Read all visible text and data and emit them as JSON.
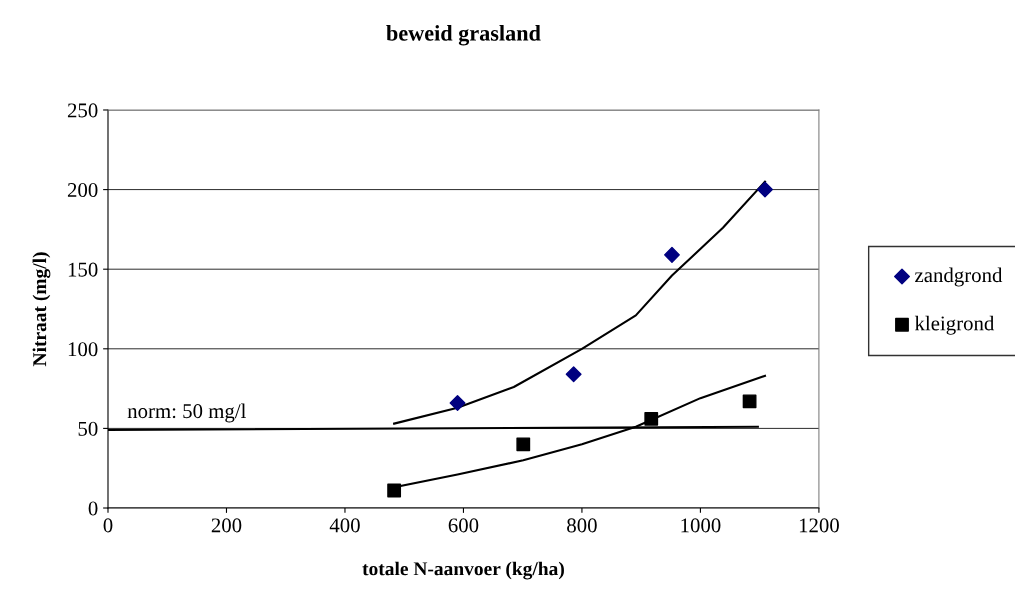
{
  "chart_data": {
    "type": "scatter",
    "title": "beweid grasland",
    "xlabel": "totale N-aanvoer (kg/ha)",
    "ylabel": "Nitraat (mg/l)",
    "xlim": [
      0,
      1200
    ],
    "xticks": [
      0,
      200,
      400,
      600,
      800,
      1000,
      1200
    ],
    "ylim": [
      0,
      250
    ],
    "yticks": [
      0,
      50,
      100,
      150,
      200,
      250
    ],
    "grid": "y",
    "legend": "right",
    "series": [
      {
        "name": "zandgrond",
        "marker": "diamond",
        "color": "#000080",
        "x": [
          590,
          786,
          952,
          1109
        ],
        "values": [
          66,
          84,
          159,
          200
        ]
      },
      {
        "name": "kleigrond",
        "marker": "square",
        "color": "#000000",
        "x": [
          483,
          701,
          917,
          1083
        ],
        "values": [
          11,
          40,
          56,
          67
        ]
      },
      {
        "type": "line",
        "color": "#000000",
        "x": [
          483,
          590,
          685,
          800,
          891,
          952,
          1038,
          1109
        ],
        "values": [
          53,
          63,
          76,
          100,
          121,
          146,
          176,
          205
        ]
      },
      {
        "type": "line",
        "color": "#000000",
        "x": [
          483,
          590,
          701,
          800,
          891,
          1000,
          1109
        ],
        "values": [
          13,
          21,
          30,
          40,
          51,
          69,
          83
        ]
      },
      {
        "type": "line",
        "color": "#000000",
        "x": [
          0,
          1097
        ],
        "values": [
          49,
          51
        ]
      }
    ],
    "annotations": [
      "norm: 50 mg/l"
    ]
  }
}
